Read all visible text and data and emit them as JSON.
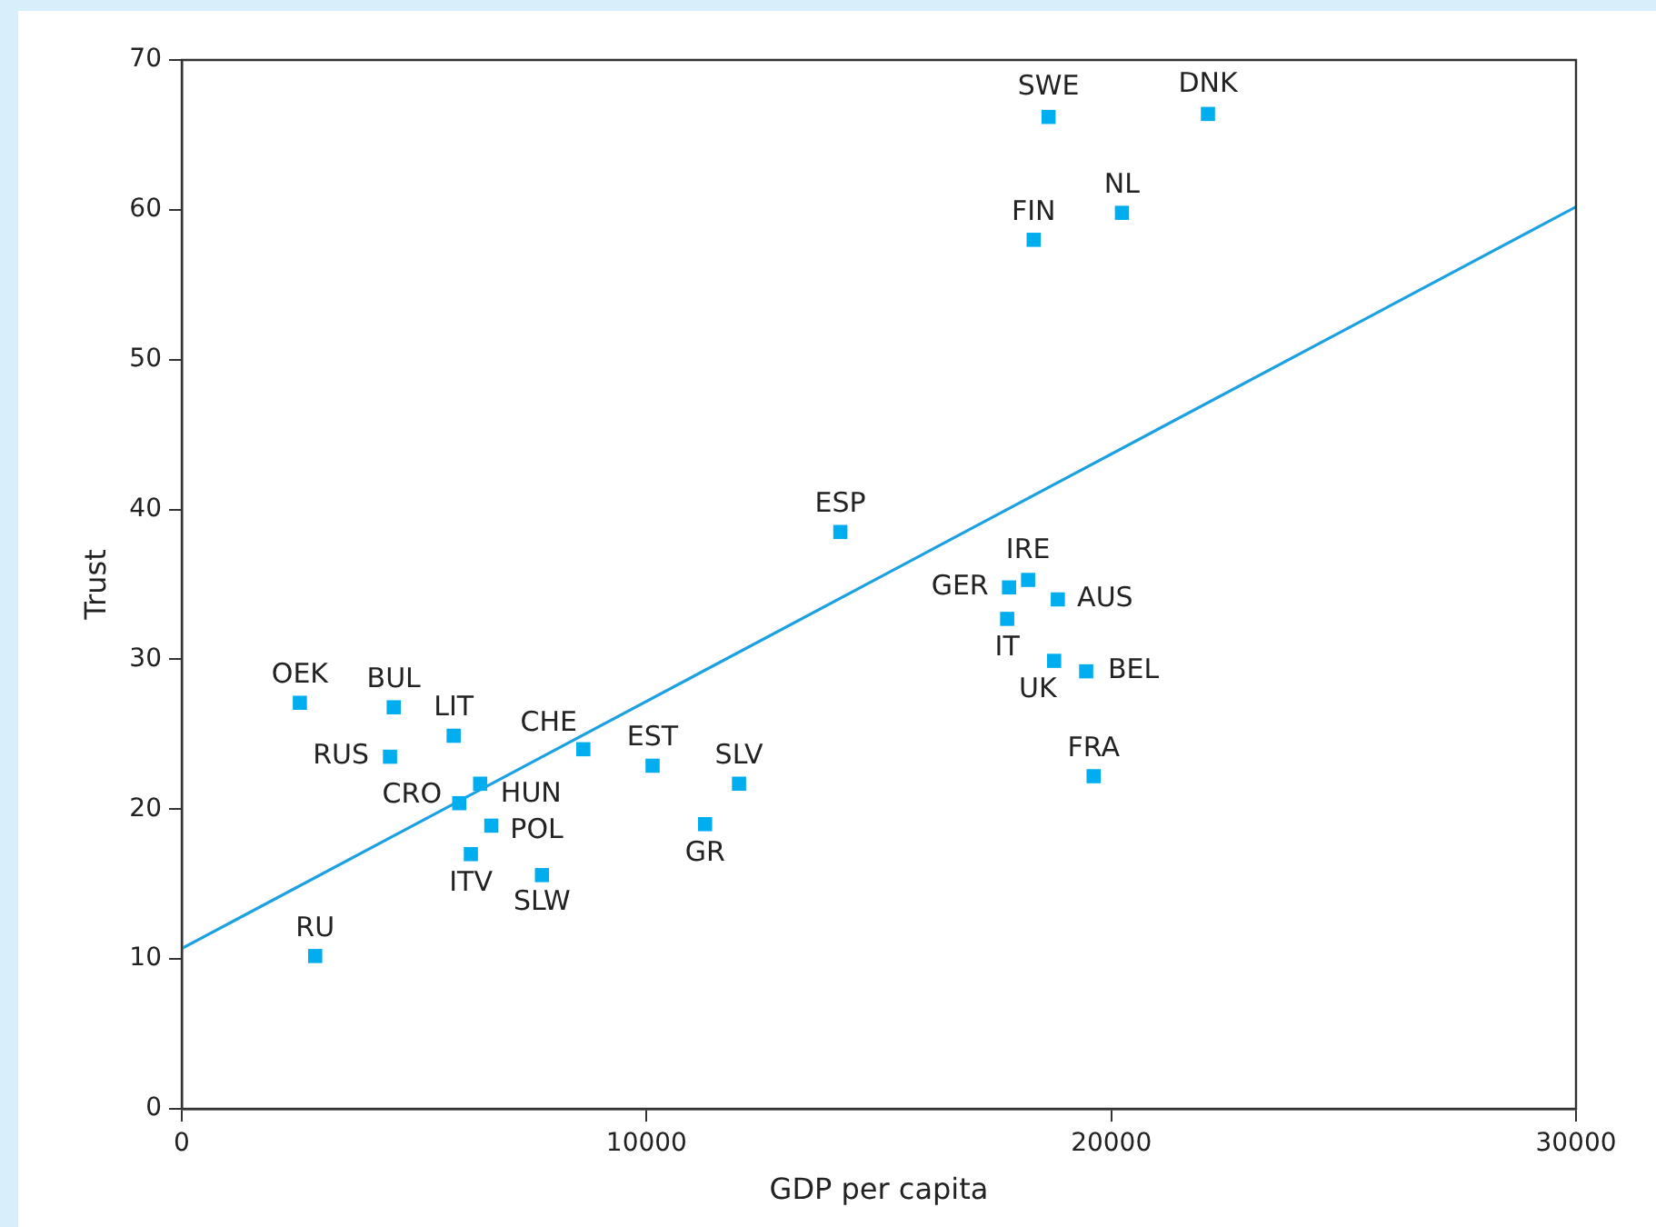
{
  "chart_data": {
    "type": "scatter",
    "xlabel": "GDP per capita",
    "ylabel": "Trust",
    "xlim": [
      0,
      30000
    ],
    "xticks": [
      0,
      10000,
      20000,
      30000
    ],
    "ylim": [
      0,
      70
    ],
    "yticks": [
      0,
      10,
      20,
      30,
      40,
      50,
      60,
      70
    ],
    "grid": false,
    "legend": false,
    "marker": "square",
    "series": [
      {
        "color": "#00aeef",
        "x": [
          18650,
          22080,
          18330,
          20230,
          14170,
          18210,
          17800,
          18850,
          17760,
          18770,
          19460,
          19620,
          2540,
          4560,
          5850,
          4480,
          8640,
          10130,
          11990,
          5970,
          6420,
          6660,
          6220,
          7750,
          11260,
          2870
        ],
        "values": [
          66.2,
          66.4,
          58.0,
          59.8,
          38.5,
          35.3,
          34.8,
          34.0,
          32.7,
          29.9,
          29.2,
          22.2,
          27.1,
          26.8,
          24.9,
          23.5,
          24.0,
          22.9,
          21.7,
          20.4,
          21.7,
          18.9,
          17.0,
          15.6,
          19.0,
          10.2
        ]
      },
      {
        "type": "line",
        "color": "#1ba1e2",
        "marker": "none",
        "x": [
          0,
          30000
        ],
        "values": [
          10.7,
          60.2
        ]
      }
    ],
    "annotations": [
      {
        "text": "SWE",
        "x": 18650,
        "y": 66.2
      },
      {
        "text": "DNK",
        "x": 22080,
        "y": 66.4
      },
      {
        "text": "FIN",
        "x": 18330,
        "y": 58.0
      },
      {
        "text": "NL",
        "x": 20230,
        "y": 59.8
      },
      {
        "text": "ESP",
        "x": 14170,
        "y": 38.5
      },
      {
        "text": "IRE",
        "x": 18210,
        "y": 35.3
      },
      {
        "text": "GER",
        "x": 17800,
        "y": 34.8
      },
      {
        "text": "AUS",
        "x": 18850,
        "y": 34.0
      },
      {
        "text": "IT",
        "x": 17760,
        "y": 32.7
      },
      {
        "text": "UK",
        "x": 18770,
        "y": 29.9
      },
      {
        "text": "BEL",
        "x": 19460,
        "y": 29.2
      },
      {
        "text": "FRA",
        "x": 19620,
        "y": 22.2
      },
      {
        "text": "OEK",
        "x": 2540,
        "y": 27.1
      },
      {
        "text": "BUL",
        "x": 4560,
        "y": 26.8
      },
      {
        "text": "LIT",
        "x": 5850,
        "y": 24.9
      },
      {
        "text": "RUS",
        "x": 4480,
        "y": 23.5
      },
      {
        "text": "CHE",
        "x": 8640,
        "y": 24.0
      },
      {
        "text": "EST",
        "x": 10130,
        "y": 22.9
      },
      {
        "text": "SLV",
        "x": 11990,
        "y": 21.7
      },
      {
        "text": "CRO",
        "x": 5970,
        "y": 20.4
      },
      {
        "text": "HUN",
        "x": 6420,
        "y": 21.7
      },
      {
        "text": "POL",
        "x": 6660,
        "y": 18.9
      },
      {
        "text": "ITV",
        "x": 6220,
        "y": 17.0
      },
      {
        "text": "SLW",
        "x": 7750,
        "y": 15.6
      },
      {
        "text": "GR",
        "x": 11260,
        "y": 19.0
      },
      {
        "text": "RU",
        "x": 2870,
        "y": 10.2
      }
    ]
  }
}
